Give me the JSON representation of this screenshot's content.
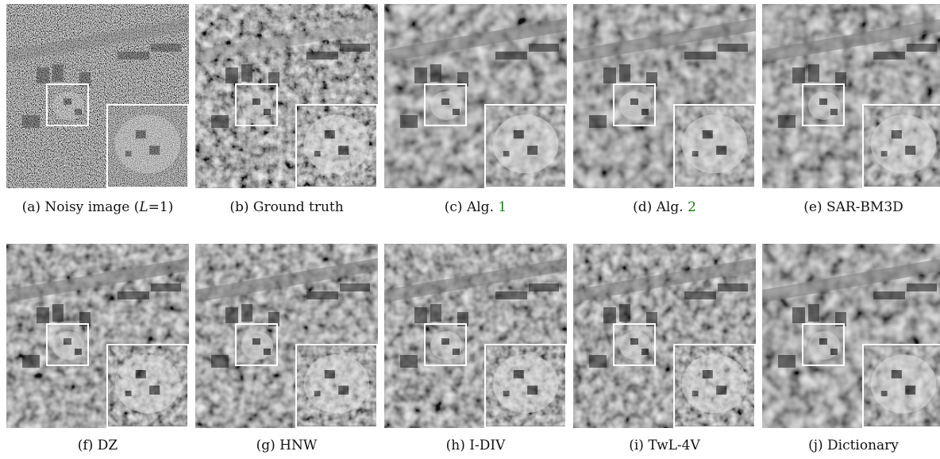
{
  "figure": {
    "panels": [
      {
        "id": "a",
        "label": "(a) Noisy image (",
        "math": "L",
        "tail": "=1)",
        "style": "noisy"
      },
      {
        "id": "b",
        "label": "(b) Ground truth",
        "style": "truth"
      },
      {
        "id": "c",
        "label": "(c) Alg. ",
        "ref": "1",
        "style": "smooth"
      },
      {
        "id": "d",
        "label": "(d) Alg. ",
        "ref": "2",
        "style": "smooth"
      },
      {
        "id": "e",
        "label": "(e) SAR-BM3D",
        "style": "smooth"
      },
      {
        "id": "f",
        "label": "(f) DZ",
        "style": "patchy"
      },
      {
        "id": "g",
        "label": "(g) HNW",
        "style": "patchy"
      },
      {
        "id": "h",
        "label": "(h) I-DIV",
        "style": "patchy"
      },
      {
        "id": "i",
        "label": "(i) TwL-4V",
        "style": "patchy"
      },
      {
        "id": "j",
        "label": "(j) Dictionary",
        "style": "smooth"
      }
    ],
    "colors": {
      "frame": "#ffffff",
      "ref_link": "#1a7f1a",
      "text": "#111111"
    }
  }
}
